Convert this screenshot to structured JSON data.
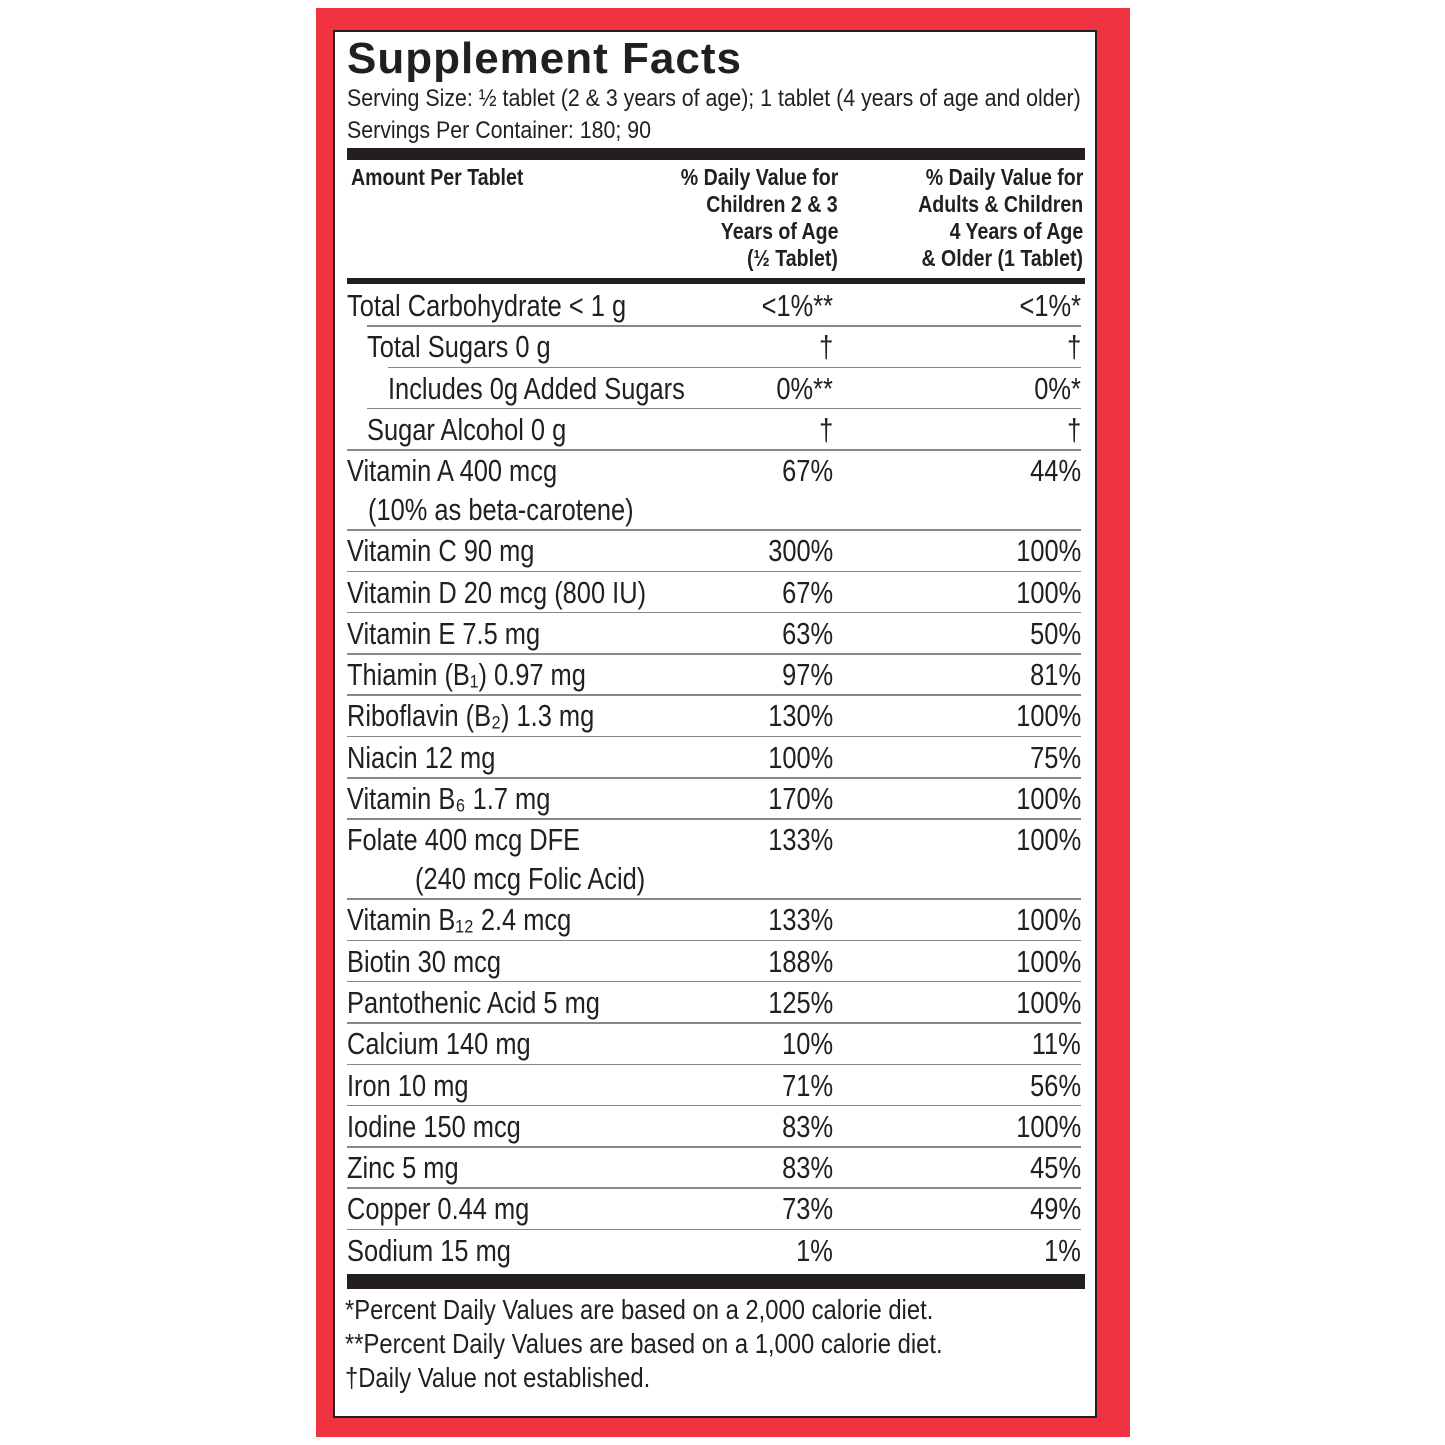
{
  "header": {
    "title": "Supplement Facts",
    "serving_size": "Serving Size: ½ tablet (2 & 3 years of age); 1 tablet (4 years of age and older)",
    "servings_per_container": "Servings Per Container: 180; 90"
  },
  "table": {
    "columns": [
      [
        "Amount Per Tablet"
      ],
      [
        "% Daily Value for",
        "Children 2 & 3",
        "Years of Age",
        "(½ Tablet)"
      ],
      [
        "% Daily Value for",
        "Adults & Children",
        "4 Years of Age",
        "& Older (1 Tablet)"
      ]
    ],
    "rows": [
      {
        "label": "Total Carbohydrate < 1 g",
        "children": "<1%**",
        "adults": "<1%*"
      },
      {
        "label": "Total Sugars 0 g",
        "children": "†",
        "adults": "†"
      },
      {
        "label": "Includes 0g Added Sugars",
        "children": "0%**",
        "adults": "0%*"
      },
      {
        "label": "Sugar Alcohol 0 g",
        "children": "†",
        "adults": "†"
      },
      {
        "label": "Vitamin A 400 mcg",
        "note": "(10% as beta-carotene)",
        "children": "67%",
        "adults": "44%"
      },
      {
        "label": "Vitamin C 90 mg",
        "children": "300%",
        "adults": "100%"
      },
      {
        "label": "Vitamin D 20 mcg (800 IU)",
        "children": "67%",
        "adults": "100%"
      },
      {
        "label": "Vitamin E 7.5 mg",
        "children": "63%",
        "adults": "50%"
      },
      {
        "label": "Thiamin (B₁) 0.97 mg",
        "children": "97%",
        "adults": "81%"
      },
      {
        "label": "Riboflavin (B₂) 1.3 mg",
        "children": "130%",
        "adults": "100%"
      },
      {
        "label": "Niacin 12 mg",
        "children": "100%",
        "adults": "75%"
      },
      {
        "label": "Vitamin B₆ 1.7 mg",
        "children": "170%",
        "adults": "100%"
      },
      {
        "label": "Folate 400 mcg DFE",
        "note": "(240 mcg Folic Acid)",
        "children": "133%",
        "adults": "100%"
      },
      {
        "label": "Vitamin B₁₂ 2.4 mcg",
        "children": "133%",
        "adults": "100%"
      },
      {
        "label": "Biotin 30 mcg",
        "children": "188%",
        "adults": "100%"
      },
      {
        "label": "Pantothenic Acid 5 mg",
        "children": "125%",
        "adults": "100%"
      },
      {
        "label": "Calcium 140 mg",
        "children": "10%",
        "adults": "11%"
      },
      {
        "label": "Iron 10 mg",
        "children": "71%",
        "adults": "56%"
      },
      {
        "label": "Iodine 150 mcg",
        "children": "83%",
        "adults": "100%"
      },
      {
        "label": "Zinc 5 mg",
        "children": "83%",
        "adults": "45%"
      },
      {
        "label": "Copper 0.44 mg",
        "children": "73%",
        "adults": "49%"
      },
      {
        "label": "Sodium 15 mg",
        "children": "1%",
        "adults": "1%"
      }
    ]
  },
  "footnotes": [
    "*Percent Daily Values are based on a 2,000 calorie diet.",
    "**Percent Daily Values are based on a 1,000 calorie diet.",
    "†Daily Value not established."
  ]
}
